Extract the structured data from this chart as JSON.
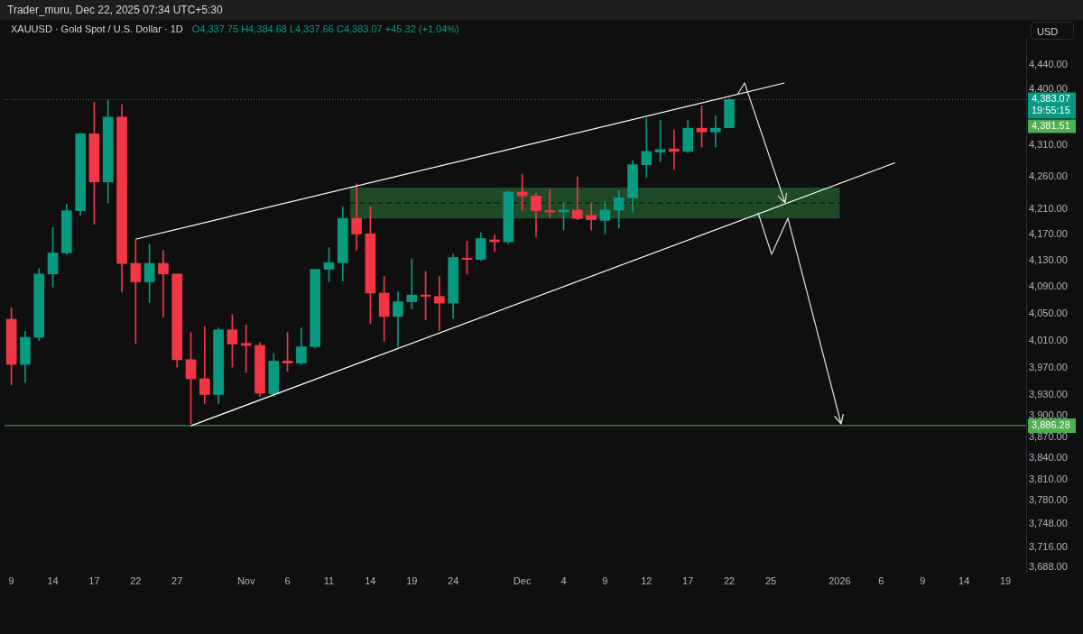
{
  "chart_data": {
    "type": "candlestick",
    "title": "XAUUSD · Gold Spot / U.S. Dollar · 1D",
    "subtitle": "O4,337.75 H4,384.68 L4,337.66 C4,383.07 +45.32 (+1.04%)",
    "ylabel": "USD",
    "annotations": [
      "Trader_muru, Dec 22, 2025 07:34 UTC+5:30",
      "19:55:15",
      "4,381.51"
    ],
    "log": true,
    "ylim": [
      3681,
      4484
    ],
    "yticks": [
      {
        "value": 3688,
        "label": "3,688.00"
      },
      {
        "value": 3716,
        "label": "3,716.00"
      },
      {
        "value": 3748,
        "label": "3,748.00"
      },
      {
        "value": 3780,
        "label": "3,780.00"
      },
      {
        "value": 3810,
        "label": "3,810.00"
      },
      {
        "value": 3840,
        "label": "3,840.00"
      },
      {
        "value": 3870,
        "label": "3,870.00"
      },
      {
        "value": 3900,
        "label": "3,900.00"
      },
      {
        "value": 3930,
        "label": "3,930.00"
      },
      {
        "value": 3970,
        "label": "3,970.00"
      },
      {
        "value": 4010,
        "label": "4,010.00"
      },
      {
        "value": 4050,
        "label": "4,050.00"
      },
      {
        "value": 4090,
        "label": "4,090.00"
      },
      {
        "value": 4130,
        "label": "4,130.00"
      },
      {
        "value": 4170,
        "label": "4,170.00"
      },
      {
        "value": 4210,
        "label": "4,210.00"
      },
      {
        "value": 4260,
        "label": "4,260.00"
      },
      {
        "value": 4310,
        "label": "4,310.00"
      },
      {
        "value": 4400,
        "label": "4,400.00"
      },
      {
        "value": 4440,
        "label": "4,440.00"
      }
    ],
    "categories": [
      "9",
      null,
      null,
      "14",
      null,
      null,
      "17",
      null,
      null,
      "22",
      null,
      null,
      "27",
      null,
      null,
      null,
      null,
      "Nov",
      null,
      null,
      "6",
      null,
      null,
      "11",
      null,
      null,
      "14",
      null,
      null,
      "19",
      null,
      null,
      "24",
      null,
      null,
      null,
      null,
      "Dec",
      null,
      null,
      "4",
      null,
      null,
      "9",
      null,
      null,
      "12",
      null,
      null,
      "17",
      null,
      null,
      "22",
      null,
      null,
      "25",
      null,
      null,
      null,
      null,
      "2026",
      null,
      null,
      "6",
      null,
      null,
      "9",
      null,
      null,
      "14",
      null,
      null,
      "19",
      null
    ],
    "ohlc": [
      [
        4042,
        4059,
        3945,
        3975
      ],
      [
        3975,
        4024,
        3949,
        4015
      ],
      [
        4015,
        4118,
        4010,
        4110
      ],
      [
        4110,
        4181,
        4090,
        4142
      ],
      [
        4142,
        4217,
        4140,
        4207
      ],
      [
        4207,
        4329,
        4200,
        4328
      ],
      [
        4328,
        4379,
        4186,
        4252
      ],
      [
        4252,
        4382,
        4219,
        4355
      ],
      [
        4355,
        4375,
        4083,
        4126
      ],
      [
        4126,
        4162,
        4006,
        4098
      ],
      [
        4098,
        4155,
        4067,
        4126
      ],
      [
        4126,
        4146,
        4045,
        4110
      ],
      [
        4110,
        4110,
        3971,
        3982
      ],
      [
        3982,
        4022,
        3889,
        3954
      ],
      [
        3954,
        4031,
        3918,
        3931
      ],
      [
        3931,
        4029,
        3918,
        4026
      ],
      [
        4026,
        4049,
        3971,
        4005
      ],
      [
        4006,
        4033,
        3963,
        4003
      ],
      [
        4003,
        4007,
        3928,
        3933
      ],
      [
        3932,
        3991,
        3928,
        3980
      ],
      [
        3980,
        4022,
        3965,
        3977
      ],
      [
        3977,
        4029,
        3975,
        4001
      ],
      [
        4001,
        4117,
        3999,
        4117
      ],
      [
        4117,
        4150,
        4098,
        4127
      ],
      [
        4127,
        4213,
        4099,
        4195
      ],
      [
        4195,
        4249,
        4146,
        4171
      ],
      [
        4171,
        4213,
        4035,
        4081
      ],
      [
        4081,
        4106,
        4009,
        4046
      ],
      [
        4046,
        4083,
        4001,
        4068
      ],
      [
        4068,
        4133,
        4057,
        4078
      ],
      [
        4078,
        4114,
        4041,
        4076
      ],
      [
        4076,
        4106,
        4025,
        4066
      ],
      [
        4066,
        4140,
        4043,
        4135
      ],
      [
        4134,
        4160,
        4110,
        4132
      ],
      [
        4132,
        4173,
        4130,
        4164
      ],
      [
        4162,
        4170,
        4144,
        4159
      ],
      [
        4159,
        4238,
        4156,
        4236
      ],
      [
        4236,
        4264,
        4207,
        4230
      ],
      [
        4230,
        4234,
        4167,
        4207
      ],
      [
        4207,
        4240,
        4196,
        4205
      ],
      [
        4205,
        4219,
        4177,
        4208
      ],
      [
        4208,
        4260,
        4193,
        4195
      ],
      [
        4200,
        4219,
        4177,
        4193
      ],
      [
        4192,
        4221,
        4171,
        4208
      ],
      [
        4208,
        4239,
        4180,
        4227
      ],
      [
        4227,
        4286,
        4205,
        4279
      ],
      [
        4279,
        4353,
        4259,
        4300
      ],
      [
        4299,
        4350,
        4284,
        4303
      ],
      [
        4304,
        4334,
        4271,
        4300
      ],
      [
        4300,
        4350,
        4298,
        4337
      ],
      [
        4337,
        4373,
        4307,
        4331
      ],
      [
        4331,
        4357,
        4307,
        4337
      ],
      [
        4337.75,
        4384.68,
        4337.66,
        4383.07
      ],
      null,
      null,
      null,
      null,
      null,
      null,
      null,
      null,
      null,
      null,
      null,
      null,
      null,
      null,
      null,
      null,
      null,
      null,
      null,
      null,
      null
    ],
    "colors": [
      "#f23645",
      "#089981",
      "#089981",
      "#089981",
      "#089981",
      "#089981",
      "#f23645",
      "#089981",
      "#f23645",
      "#f23645",
      "#089981",
      "#f23645",
      "#f23645",
      "#f23645",
      "#f23645",
      "#089981",
      "#f23645",
      "#f23645",
      "#f23645",
      "#089981",
      "#f23645",
      "#089981",
      "#089981",
      "#089981",
      "#089981",
      "#f23645",
      "#f23645",
      "#f23645",
      "#089981",
      "#089981",
      "#f23645",
      "#f23645",
      "#089981",
      "#f23645",
      "#089981",
      "#f23645",
      "#089981",
      "#f23645",
      "#f23645",
      "#f23645",
      "#089981",
      "#f23645",
      "#f23645",
      "#089981",
      "#089981",
      "#089981",
      "#089981",
      "#089981",
      "#f23645",
      "#089981",
      "#f23645",
      "#089981",
      "#089981",
      null,
      null,
      null,
      null,
      null,
      null,
      null,
      null,
      null,
      null,
      null,
      null,
      null,
      null,
      null,
      null,
      null,
      null,
      null,
      null,
      null
    ],
    "series": [
      {
        "type": "line",
        "color": "#ffffff",
        "values": [
          null,
          null,
          null,
          null,
          null,
          null,
          null,
          null,
          null,
          4163,
          null,
          null,
          null,
          null,
          null,
          null,
          null,
          null,
          null,
          null,
          null,
          null,
          null,
          null,
          null,
          null,
          null,
          null,
          null,
          null,
          null,
          null,
          null,
          null,
          null,
          null,
          null,
          null,
          null,
          null,
          null,
          null,
          null,
          null,
          null,
          null,
          null,
          null,
          null,
          null,
          null,
          null,
          null,
          null,
          null,
          null,
          4410,
          null,
          null,
          null,
          null,
          null,
          null,
          null,
          null,
          null,
          null,
          null,
          null,
          null,
          null,
          null,
          null,
          null
        ]
      },
      {
        "type": "line",
        "color": "#ffffff",
        "values": [
          null,
          null,
          null,
          null,
          null,
          null,
          null,
          null,
          null,
          null,
          null,
          null,
          null,
          3886,
          null,
          null,
          null,
          null,
          null,
          null,
          null,
          null,
          null,
          null,
          null,
          null,
          null,
          null,
          null,
          null,
          null,
          null,
          null,
          null,
          null,
          null,
          null,
          null,
          null,
          null,
          null,
          null,
          null,
          null,
          null,
          null,
          null,
          null,
          null,
          null,
          null,
          null,
          null,
          null,
          null,
          null,
          null,
          null,
          null,
          null,
          null,
          null,
          null,
          null,
          4282,
          null,
          null,
          null,
          null,
          null,
          null,
          null,
          null,
          null
        ]
      }
    ],
    "marker": "none",
    "ref_lines": [
      {
        "axis": "y",
        "value": 4383.07,
        "label": "4,383.07",
        "color": "#089981",
        "line_style": "dotted"
      },
      {
        "axis": "y",
        "value": 3886.28,
        "label": "3,886.28",
        "color": "#4caf50",
        "line_style": "solid"
      },
      {
        "axis": "y",
        "value": 4219,
        "color": "#0c0c0c",
        "line_style": "dashed"
      }
    ],
    "bands": [
      {
        "axis": "y",
        "from": 4195,
        "to": 4243,
        "color": "#1f4a28"
      }
    ]
  }
}
